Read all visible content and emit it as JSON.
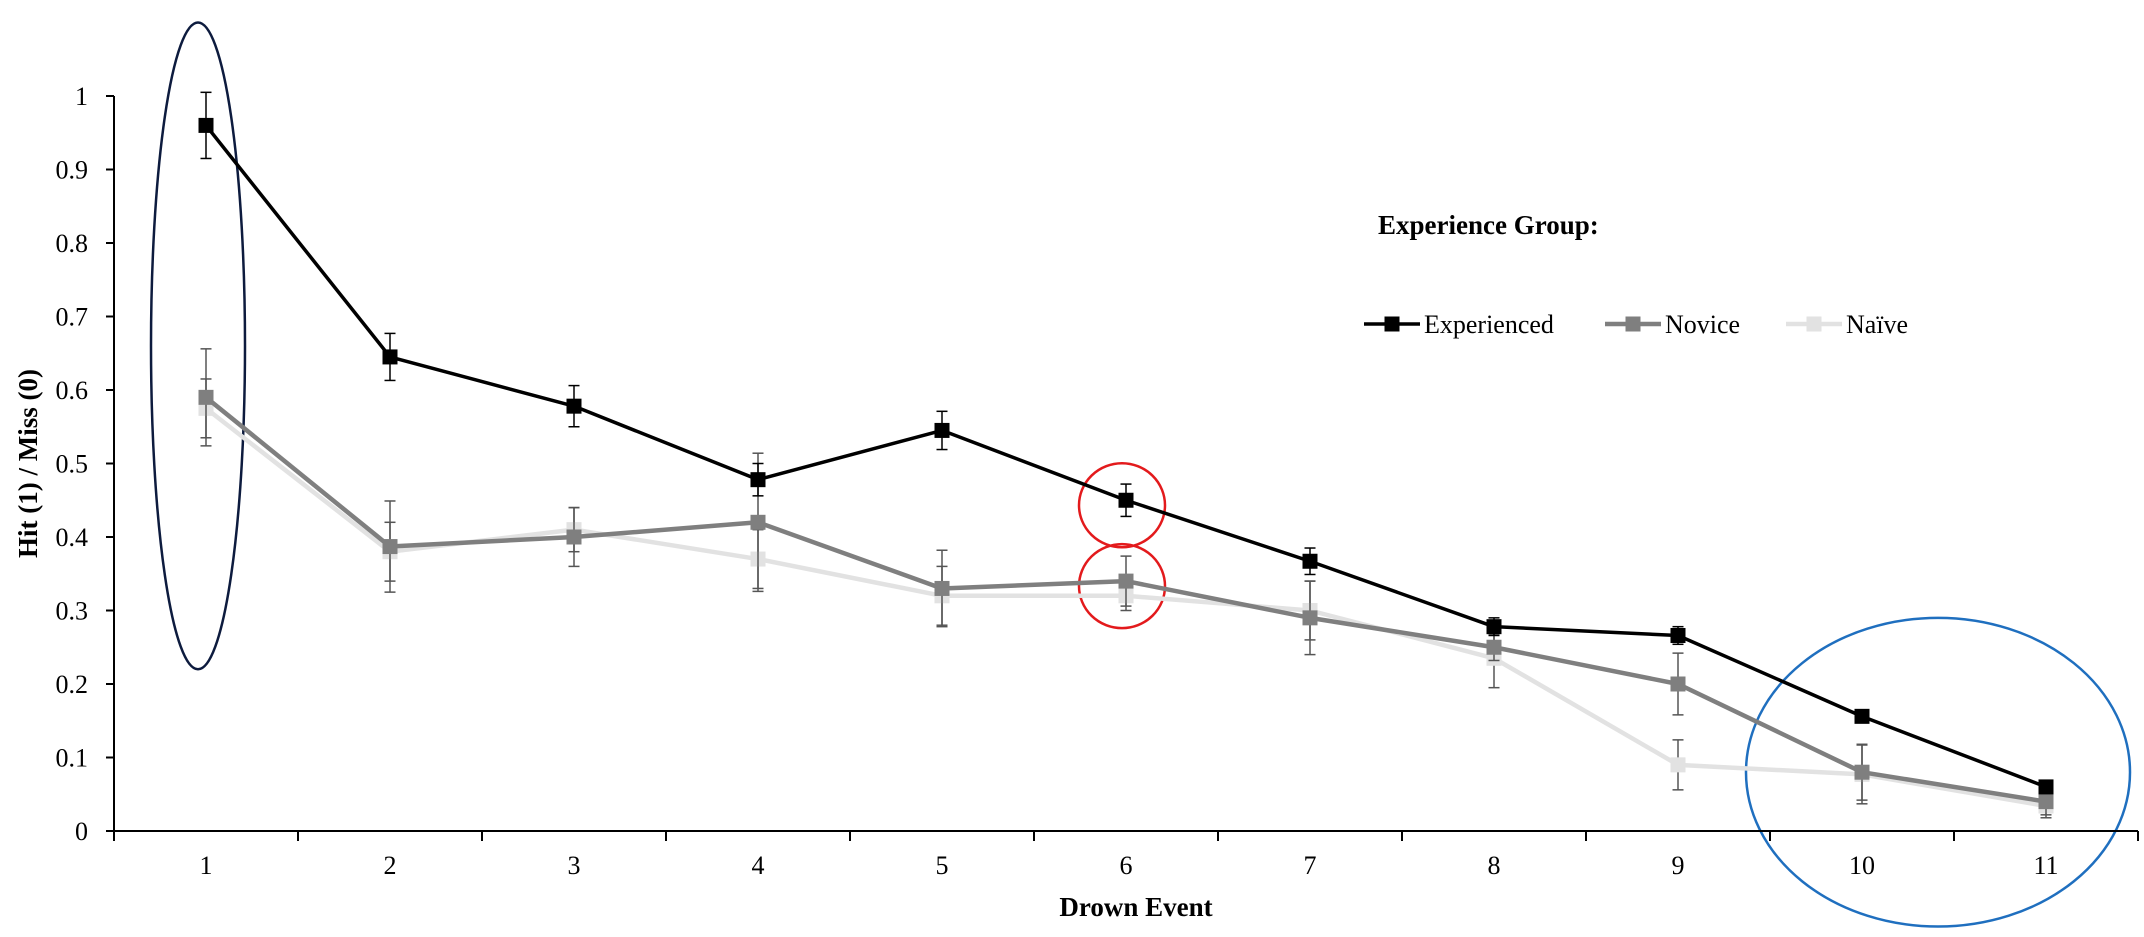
{
  "chart_data": {
    "type": "line",
    "title": "",
    "xlabel": "Drown Event",
    "ylabel": "Hit (1) / Miss (0)",
    "x": [
      1,
      2,
      3,
      4,
      5,
      6,
      7,
      8,
      9,
      10,
      11
    ],
    "ylim": [
      0,
      1
    ],
    "yticks": [
      "0",
      "0.1",
      "0.2",
      "0.3",
      "0.4",
      "0.5",
      "0.6",
      "0.7",
      "0.8",
      "0.9",
      "1"
    ],
    "xticks": [
      "1",
      "2",
      "3",
      "4",
      "5",
      "6",
      "7",
      "8",
      "9",
      "10",
      "11"
    ],
    "grid": false,
    "error_bars": true,
    "legend": {
      "title": "Experience Group:",
      "position": "top-right"
    },
    "series": [
      {
        "name": "Experienced",
        "color": "#000000",
        "values": [
          0.96,
          0.645,
          0.578,
          0.478,
          0.545,
          0.45,
          0.367,
          0.278,
          0.266,
          0.156,
          0.06
        ],
        "errors": [
          0.045,
          0.032,
          0.028,
          0.022,
          0.026,
          0.022,
          0.018,
          0.012,
          0.012,
          0.006,
          0.008
        ]
      },
      {
        "name": "Novice",
        "color": "#7f7f7f",
        "values": [
          0.59,
          0.387,
          0.4,
          0.42,
          0.33,
          0.34,
          0.29,
          0.25,
          0.2,
          0.08,
          0.04
        ],
        "errors": [
          0.066,
          0.062,
          0.04,
          0.094,
          0.052,
          0.034,
          0.05,
          0.018,
          0.042,
          0.038,
          0.018
        ]
      },
      {
        "name": "Naïve",
        "color": "#e2e2e2",
        "values": [
          0.575,
          0.38,
          0.41,
          0.37,
          0.32,
          0.32,
          0.3,
          0.235,
          0.09,
          0.077,
          0.034
        ],
        "errors": [
          0.04,
          0.04,
          0.03,
          0.04,
          0.04,
          0.02,
          0.04,
          0.04,
          0.034,
          0.04,
          0.016
        ]
      }
    ],
    "annotations": [
      {
        "shape": "ellipse",
        "color": "#0d1b3e",
        "around_x": 1,
        "y_range": [
          0.22,
          1.1
        ]
      },
      {
        "shape": "circle",
        "color": "#e31a1c",
        "around_x": 6,
        "y_center": 0.45
      },
      {
        "shape": "circle",
        "color": "#e31a1c",
        "around_x": 6,
        "y_center": 0.34
      },
      {
        "shape": "ellipse",
        "color": "#1f6fbf",
        "around_x": [
          9.5,
          11
        ],
        "y_range": [
          -0.13,
          0.29
        ]
      }
    ]
  }
}
